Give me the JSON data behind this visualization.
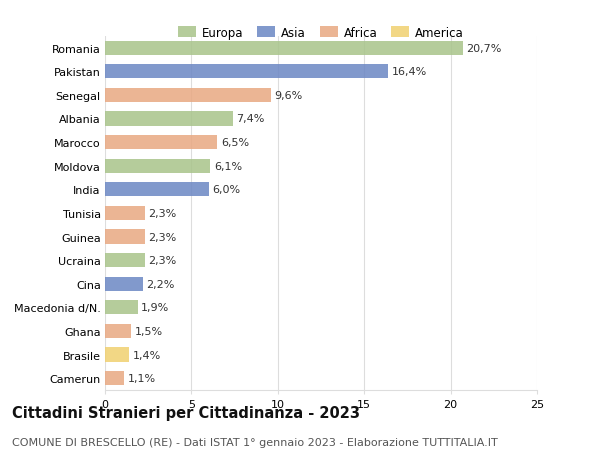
{
  "countries": [
    "Romania",
    "Pakistan",
    "Senegal",
    "Albania",
    "Marocco",
    "Moldova",
    "India",
    "Tunisia",
    "Guinea",
    "Ucraina",
    "Cina",
    "Macedonia d/N.",
    "Ghana",
    "Brasile",
    "Camerun"
  ],
  "values": [
    20.7,
    16.4,
    9.6,
    7.4,
    6.5,
    6.1,
    6.0,
    2.3,
    2.3,
    2.3,
    2.2,
    1.9,
    1.5,
    1.4,
    1.1
  ],
  "labels": [
    "20,7%",
    "16,4%",
    "9,6%",
    "7,4%",
    "6,5%",
    "6,1%",
    "6,0%",
    "2,3%",
    "2,3%",
    "2,3%",
    "2,2%",
    "1,9%",
    "1,5%",
    "1,4%",
    "1,1%"
  ],
  "continents": [
    "Europa",
    "Asia",
    "Africa",
    "Europa",
    "Africa",
    "Europa",
    "Asia",
    "Africa",
    "Africa",
    "Europa",
    "Asia",
    "Europa",
    "Africa",
    "America",
    "Africa"
  ],
  "continent_colors": {
    "Europa": "#a8c48a",
    "Asia": "#6b87c4",
    "Africa": "#e8a882",
    "America": "#f0d070"
  },
  "legend_order": [
    "Europa",
    "Asia",
    "Africa",
    "America"
  ],
  "title": "Cittadini Stranieri per Cittadinanza - 2023",
  "subtitle": "COMUNE DI BRESCELLO (RE) - Dati ISTAT 1° gennaio 2023 - Elaborazione TUTTITALIA.IT",
  "xlim": [
    0,
    25
  ],
  "xticks": [
    0,
    5,
    10,
    15,
    20,
    25
  ],
  "background_color": "#ffffff",
  "grid_color": "#dddddd",
  "bar_height": 0.6,
  "title_fontsize": 10.5,
  "subtitle_fontsize": 8.0,
  "label_fontsize": 8.0,
  "tick_fontsize": 8.0,
  "legend_fontsize": 8.5
}
